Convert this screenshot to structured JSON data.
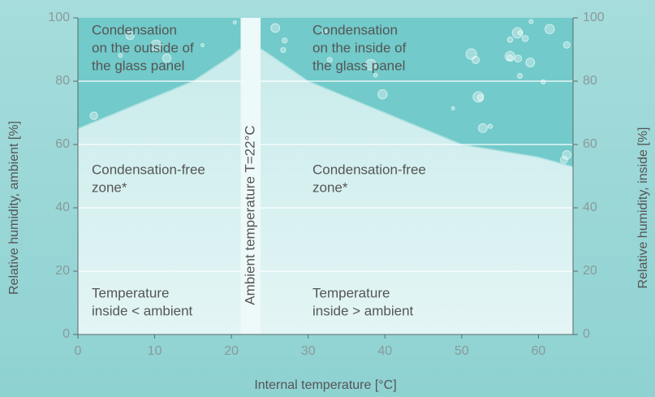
{
  "chart_data": {
    "type": "area",
    "x_label": "Internal temperature [°C]",
    "y_label": "Relative humidity, ambient [%]",
    "y2_label": "Relative humidity, inside [%]",
    "xlim": [
      0,
      64.5
    ],
    "xticks": [
      0,
      10,
      20,
      30,
      40,
      50,
      60
    ],
    "ylim": [
      0,
      100
    ],
    "yticks": [
      0,
      20,
      40,
      60,
      80,
      100
    ],
    "y2lim": [
      0,
      100
    ],
    "y2ticks": [
      0,
      20,
      40,
      60,
      80,
      100
    ],
    "grid": true,
    "x": [
      0,
      5,
      10,
      15,
      20,
      21,
      24,
      30,
      40,
      50,
      60,
      64.5
    ],
    "values": [
      65,
      70,
      75,
      80,
      88,
      90,
      90,
      80,
      70,
      60,
      56,
      53
    ],
    "color": "#72caca",
    "band": [
      21.2,
      23.8
    ],
    "band_label": "Ambient temperature T=22°C",
    "annotations": [
      [
        "Condensation",
        "on the outside of",
        "the glass panel"
      ],
      [
        "Condensation",
        "on the inside of",
        "the glass panel"
      ],
      [
        "Condensation-free",
        "zone*"
      ],
      [
        "Condensation-free",
        "zone*"
      ],
      [
        "Temperature",
        "inside < ambient"
      ],
      [
        "Temperature",
        "inside > ambient"
      ]
    ]
  }
}
